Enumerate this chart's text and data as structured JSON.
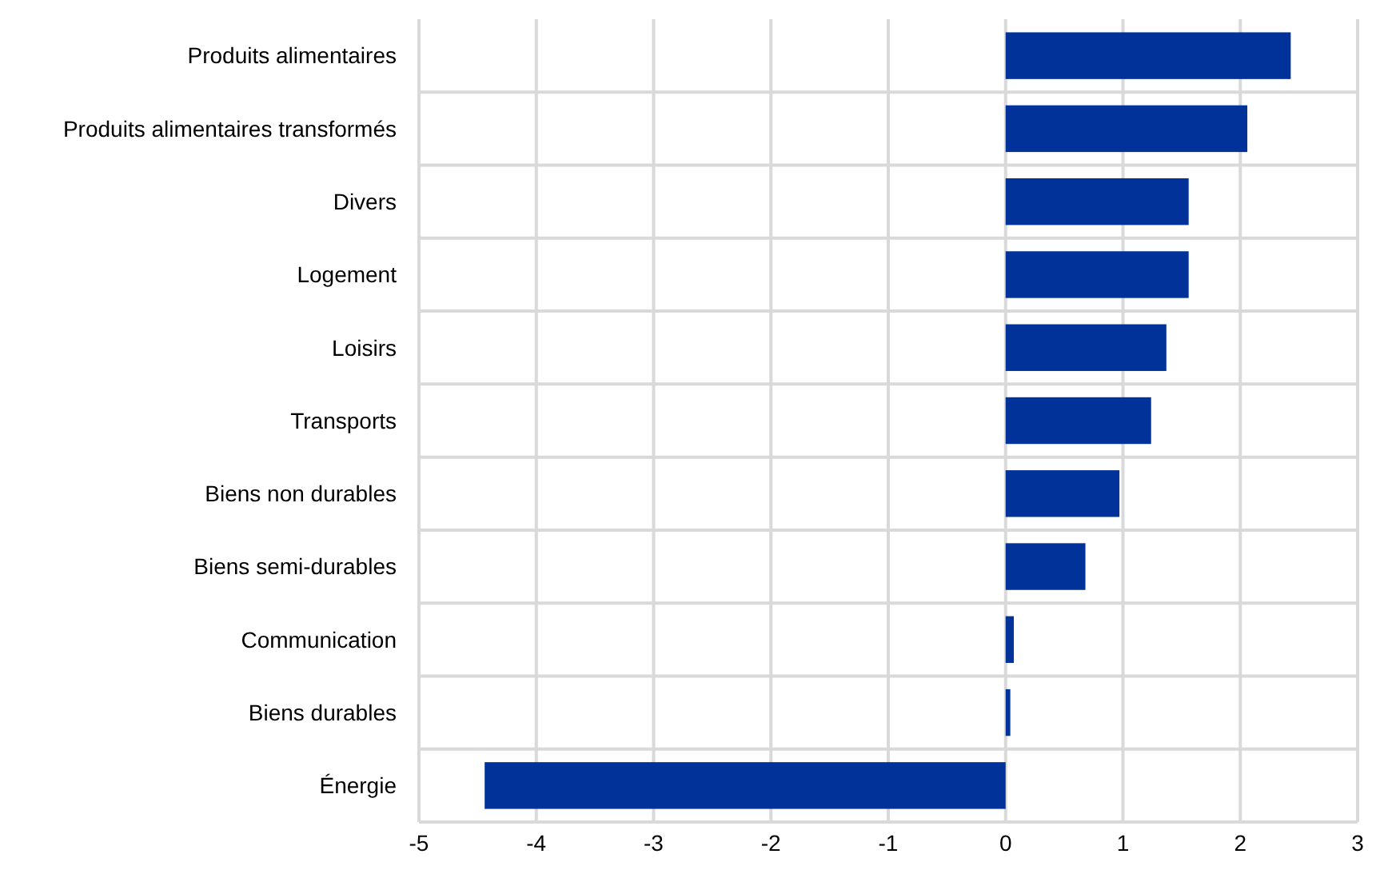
{
  "chart_data": {
    "type": "bar",
    "orientation": "horizontal",
    "categories": [
      "Produits alimentaires",
      "Produits alimentaires transformés",
      "Divers",
      "Logement",
      "Loisirs",
      "Transports",
      "Biens non durables",
      "Biens semi-durables",
      "Communication",
      "Biens durables",
      "Énergie"
    ],
    "values": [
      2.43,
      2.06,
      1.56,
      1.56,
      1.37,
      1.24,
      0.97,
      0.68,
      0.07,
      0.04,
      -4.44
    ],
    "color": "#003299",
    "xlim": [
      -5,
      3
    ],
    "xticks": [
      -5,
      -4,
      -3,
      -2,
      -1,
      0,
      1,
      2,
      3
    ],
    "grid": "x"
  }
}
